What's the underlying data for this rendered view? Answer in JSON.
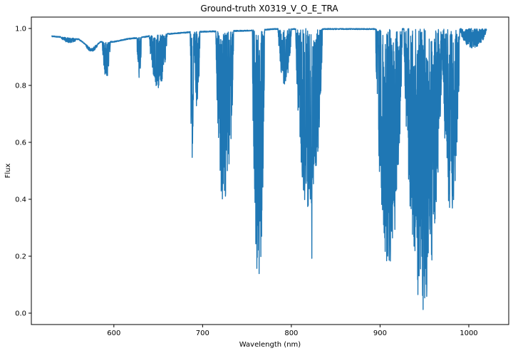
{
  "chart_data": {
    "type": "line",
    "title": "Ground-truth X0319_V_O_E_TRA",
    "xlabel": "Wavelength (nm)",
    "ylabel": "Flux",
    "xlim": [
      507,
      1045
    ],
    "ylim": [
      -0.04,
      1.04
    ],
    "xticks": [
      600,
      700,
      800,
      900,
      1000
    ],
    "xtick_labels": [
      "600",
      "700",
      "800",
      "900",
      "1000"
    ],
    "yticks": [
      0.0,
      0.2,
      0.4,
      0.6,
      0.8,
      1.0
    ],
    "ytick_labels": [
      "0.0",
      "0.2",
      "0.4",
      "0.6",
      "0.8",
      "1.0"
    ],
    "grid": false,
    "series": [
      {
        "color": "#1f77b4",
        "x_range": [
          530,
          1020
        ],
        "continuum": [
          [
            530,
            0.975
          ],
          [
            545,
            0.97
          ],
          [
            560,
            0.965
          ],
          [
            575,
            0.93
          ],
          [
            585,
            0.955
          ],
          [
            600,
            0.955
          ],
          [
            615,
            0.965
          ],
          [
            630,
            0.97
          ],
          [
            650,
            0.98
          ],
          [
            670,
            0.985
          ],
          [
            690,
            0.99
          ],
          [
            760,
            0.995
          ],
          [
            780,
            1.0
          ],
          [
            900,
            1.0
          ],
          [
            1020,
            1.0
          ]
        ],
        "absorption_bands": [
          {
            "start": 540,
            "end": 560,
            "min": 0.95
          },
          {
            "start": 568,
            "end": 582,
            "min": 0.92
          },
          {
            "start": 587,
            "end": 596,
            "min": 0.825
          },
          {
            "start": 626,
            "end": 631,
            "min": 0.825
          },
          {
            "start": 640,
            "end": 660,
            "min": 0.79
          },
          {
            "start": 686,
            "end": 690,
            "min": 0.485
          },
          {
            "start": 690,
            "end": 697,
            "min": 0.72
          },
          {
            "start": 715,
            "end": 735,
            "min": 0.345
          },
          {
            "start": 756,
            "end": 770,
            "min": 0.08
          },
          {
            "start": 785,
            "end": 800,
            "min": 0.8
          },
          {
            "start": 805,
            "end": 835,
            "min": 0.34
          },
          {
            "start": 822,
            "end": 824,
            "min": 0.15
          },
          {
            "start": 895,
            "end": 925,
            "min": 0.16
          },
          {
            "start": 927,
            "end": 970,
            "min": 0.01
          },
          {
            "start": 970,
            "end": 990,
            "min": 0.35
          },
          {
            "start": 990,
            "end": 1020,
            "min": 0.93
          }
        ]
      }
    ]
  }
}
